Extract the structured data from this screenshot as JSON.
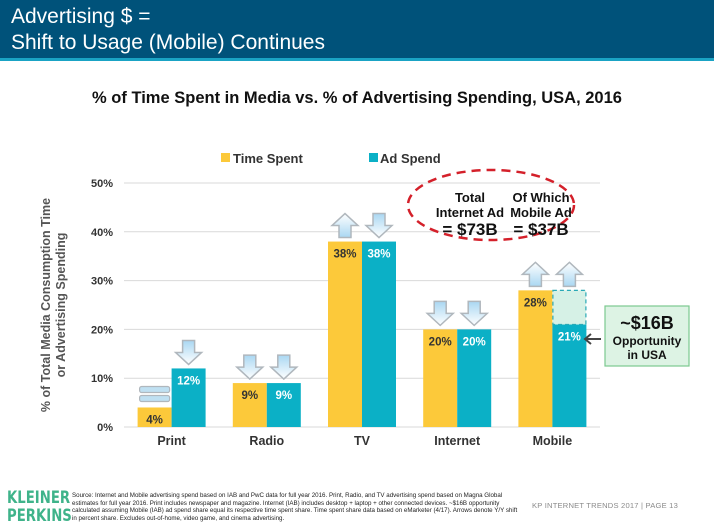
{
  "header": {
    "title_line1": "Advertising $ =",
    "title_line2": "Shift to Usage (Mobile) Continues",
    "bg_color": "#00527a",
    "accent_color": "#1aa3c4"
  },
  "chart_data": {
    "type": "bar",
    "title": "% of Time Spent in Media vs. % of Advertising Spending, USA, 2016",
    "xlabel": "",
    "ylabel": "% of Total Media Consumption Time or Advertising Spending",
    "ylabel_lines": [
      "% of Total Media Consumption Time",
      "or Advertising Spending"
    ],
    "ylim": [
      0,
      50
    ],
    "yticks": [
      0,
      10,
      20,
      30,
      40,
      50
    ],
    "ytick_labels": [
      "0%",
      "10%",
      "20%",
      "30%",
      "40%",
      "50%"
    ],
    "grid": true,
    "legend_position": "top-center",
    "categories": [
      "Print",
      "Radio",
      "TV",
      "Internet",
      "Mobile"
    ],
    "series": [
      {
        "name": "Time Spent",
        "color": "#fcc93a",
        "values": [
          4,
          9,
          38,
          20,
          28
        ],
        "labels": [
          "4%",
          "9%",
          "38%",
          "20%",
          "28%"
        ],
        "yoy_arrows": [
          "flat",
          "down",
          "up",
          "down",
          "up"
        ]
      },
      {
        "name": "Ad Spend",
        "color": "#0bb0c6",
        "values": [
          12,
          9,
          38,
          20,
          21
        ],
        "labels": [
          "12%",
          "9%",
          "38%",
          "20%",
          "21%"
        ],
        "yoy_arrows": [
          "down",
          "down",
          "down",
          "down",
          "up"
        ]
      }
    ],
    "mobile_opportunity_gap": {
      "from": 21,
      "to": 28,
      "fill": "#d6f1e6",
      "border": "#2aa9b6"
    },
    "annotations": {
      "oval": {
        "left": {
          "line1": "Total",
          "line2": "Internet Ad",
          "line3": "= $73B"
        },
        "right": {
          "line1": "Of Which",
          "line2": "Mobile Ad",
          "line3": "= $37B"
        },
        "color": "#d4202a"
      },
      "opportunity": {
        "line1": "~$16B",
        "line2": "Opportunity",
        "line3": "in USA",
        "fill": "#ddf3e4",
        "border": "#7cc98f"
      }
    }
  },
  "footer": {
    "logo_line1": "KLEINER",
    "logo_line2": "PERKINS",
    "source_text": "Source: Internet and Mobile advertising spend based on IAB and PwC data for full year 2016. Print, Radio, and TV advertising spend based on Magna Global estimates for full year 2016. Print includes newspaper and magazine. Internet (IAB) includes desktop + laptop + other connected devices. ~$16B opportunity calculated assuming Mobile (IAB) ad spend share equal its respective time spent share. Time spent share data based on eMarketer (4/17). Arrows denote Y/Y shift in percent share. Excludes out-of-home, video game, and cinema advertising.",
    "page_label": "KP INTERNET TRENDS 2017  |  PAGE 13"
  }
}
